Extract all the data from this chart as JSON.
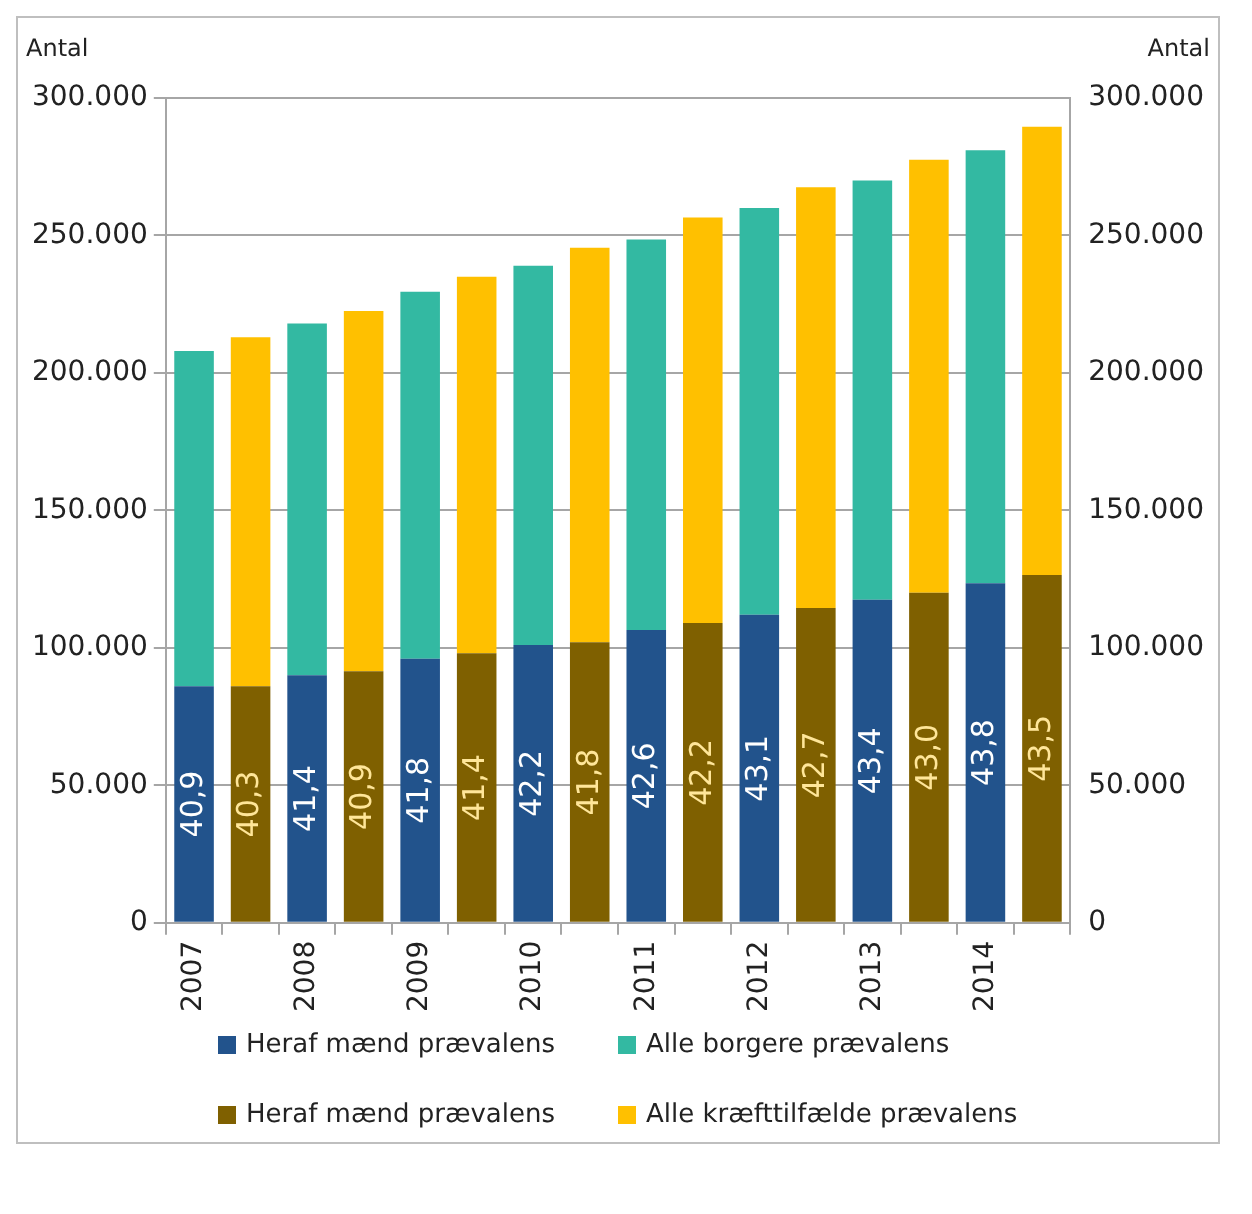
{
  "chart_data": {
    "type": "bar",
    "stacked": true,
    "ylabel": "Antal",
    "y2label": "Antal",
    "categories": [
      "2007",
      null,
      "2008",
      null,
      "2009",
      null,
      "2010",
      null,
      "2011",
      null,
      "2012",
      null,
      "2013",
      null,
      "2014",
      null
    ],
    "series": [
      {
        "name": "Heraf mænd prævalens",
        "color": "#22538c",
        "values": [
          86000,
          null,
          90000,
          null,
          96000,
          null,
          101000,
          null,
          106500,
          null,
          112000,
          null,
          117500,
          null,
          123500,
          null
        ]
      },
      {
        "name": "Alle borgere prævalens",
        "color": "#33b9a2",
        "values": [
          122000,
          null,
          128000,
          null,
          133500,
          null,
          138000,
          null,
          142000,
          null,
          148000,
          null,
          152500,
          null,
          157500,
          null
        ]
      },
      {
        "name": "Heraf mænd prævalens",
        "color": "#7f6000",
        "values": [
          null,
          86000,
          null,
          91500,
          null,
          98000,
          null,
          102000,
          null,
          109000,
          null,
          114500,
          null,
          120000,
          null,
          126500
        ]
      },
      {
        "name": "Alle kræfttilfælde prævalens",
        "color": "#ffc000",
        "values": [
          null,
          127000,
          null,
          131000,
          null,
          137000,
          null,
          143500,
          null,
          147500,
          null,
          153000,
          null,
          157500,
          null,
          163000
        ]
      }
    ],
    "ylim": [
      0,
      300000
    ],
    "yticks": [
      {
        "value": 0,
        "label": "0"
      },
      {
        "value": 50000,
        "label": "50.000"
      },
      {
        "value": 100000,
        "label": "100.000"
      },
      {
        "value": 150000,
        "label": "150.000"
      },
      {
        "value": 200000,
        "label": "200.000"
      },
      {
        "value": 250000,
        "label": "250.000"
      },
      {
        "value": 300000,
        "label": "300.000"
      }
    ],
    "y2lim": [
      0,
      300000
    ],
    "y2ticks": [
      {
        "value": 0,
        "label": "0"
      },
      {
        "value": 50000,
        "label": "50.000"
      },
      {
        "value": 100000,
        "label": "100.000"
      },
      {
        "value": 150000,
        "label": "150.000"
      },
      {
        "value": 200000,
        "label": "200.000"
      },
      {
        "value": 250000,
        "label": "250.000"
      },
      {
        "value": 300000,
        "label": "300.000"
      }
    ],
    "annotations": [
      "40,9",
      "40,3",
      "41,4",
      "40,9",
      "41,8",
      "41,4",
      "42,2",
      "41,8",
      "42,6",
      "42,2",
      "43,1",
      "42,7",
      "43,4",
      "43,0",
      "43,8",
      "43,5"
    ],
    "grid": "y",
    "legend": "bottom"
  }
}
